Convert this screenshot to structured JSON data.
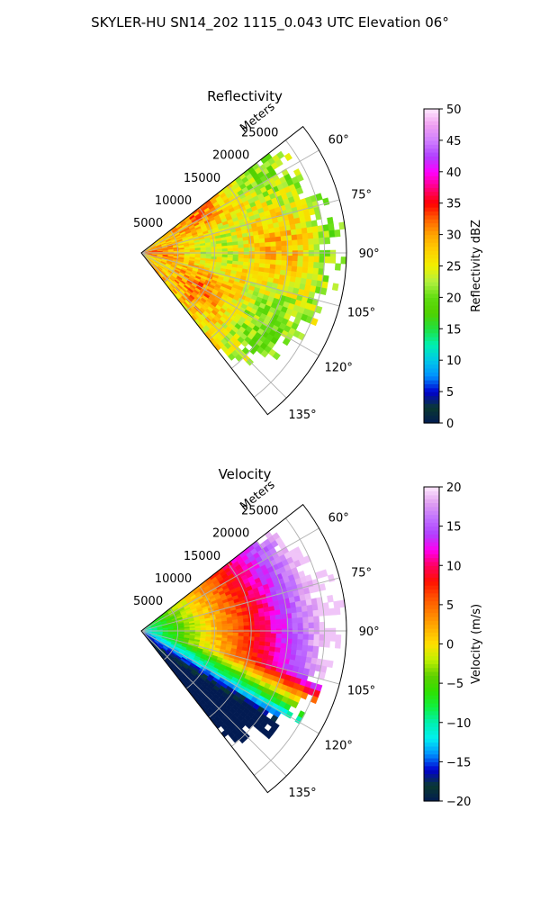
{
  "title": "SKYLER-HU  SN14_202  1115_0.043 UTC Elevation 06°",
  "chart_data": [
    {
      "type": "heatmap",
      "projection": "polar-sector",
      "title": "Reflectivity",
      "radial_label": "Meters",
      "radial_ticks": [
        5000,
        10000,
        15000,
        20000,
        25000
      ],
      "radial_tick_labels": [
        "5000",
        "10000",
        "15000",
        "20000",
        "25000"
      ],
      "azimuth_ticks": [
        60,
        75,
        90,
        105,
        120,
        135
      ],
      "azimuth_tick_labels": [
        "60°",
        "75°",
        "90°",
        "105°",
        "120°",
        "135°"
      ],
      "azimuth_range": [
        52,
        142
      ],
      "range_max": 28000,
      "grid": true,
      "colorbar": {
        "label": "Reflectivity dBZ",
        "range": [
          0,
          50
        ],
        "ticks": [
          0,
          5,
          10,
          15,
          20,
          25,
          30,
          35,
          40,
          45,
          50
        ],
        "tick_labels": [
          "0",
          "5",
          "10",
          "15",
          "20",
          "25",
          "30",
          "35",
          "40",
          "45",
          "50"
        ],
        "stops": [
          [
            0,
            "#021b52"
          ],
          [
            2.5,
            "#0a3a30"
          ],
          [
            5,
            "#0000d0"
          ],
          [
            7.5,
            "#0090ff"
          ],
          [
            10,
            "#00c8e8"
          ],
          [
            12.5,
            "#00f0b0"
          ],
          [
            15,
            "#20e040"
          ],
          [
            17.5,
            "#50d000"
          ],
          [
            20,
            "#60dd10"
          ],
          [
            22.5,
            "#b0f040"
          ],
          [
            25,
            "#f0f000"
          ],
          [
            27.5,
            "#ffd000"
          ],
          [
            30,
            "#ffa500"
          ],
          [
            32.5,
            "#ff6000"
          ],
          [
            35,
            "#ff0000"
          ],
          [
            37.5,
            "#ff0080"
          ],
          [
            40,
            "#ff00ff"
          ],
          [
            42.5,
            "#b040ff"
          ],
          [
            45,
            "#d080ff"
          ],
          [
            47.5,
            "#f0a0f0"
          ],
          [
            50,
            "#ffe8ff"
          ]
        ]
      },
      "field_summary": [
        {
          "region": "near-origin 0-5 km",
          "value_range": [
            25,
            36
          ]
        },
        {
          "region": "5-20 km",
          "value_range": [
            18,
            30
          ]
        },
        {
          "region": "20-28 km edges",
          "value_range": [
            15,
            24
          ]
        }
      ]
    },
    {
      "type": "heatmap",
      "projection": "polar-sector",
      "title": "Velocity",
      "radial_label": "Meters",
      "radial_ticks": [
        5000,
        10000,
        15000,
        20000,
        25000
      ],
      "radial_tick_labels": [
        "5000",
        "10000",
        "15000",
        "20000",
        "25000"
      ],
      "azimuth_ticks": [
        60,
        75,
        90,
        105,
        120,
        135
      ],
      "azimuth_tick_labels": [
        "60°",
        "75°",
        "90°",
        "105°",
        "120°",
        "135°"
      ],
      "azimuth_range": [
        52,
        142
      ],
      "range_max": 28000,
      "grid": true,
      "colorbar": {
        "label": "Velocity (m/s)",
        "range": [
          -20,
          20
        ],
        "ticks": [
          -20,
          -15,
          -10,
          -5,
          0,
          5,
          10,
          15,
          20
        ],
        "tick_labels": [
          "−20",
          "−15",
          "−10",
          "−5",
          "0",
          "5",
          "10",
          "15",
          "20"
        ],
        "stops": [
          [
            -20,
            "#021b52"
          ],
          [
            -18,
            "#0a3a30"
          ],
          [
            -16,
            "#0000d0"
          ],
          [
            -14,
            "#0090ff"
          ],
          [
            -12,
            "#00f0f0"
          ],
          [
            -10,
            "#00f0b0"
          ],
          [
            -8,
            "#10f040"
          ],
          [
            -6,
            "#30e000"
          ],
          [
            -4,
            "#60d000"
          ],
          [
            -2,
            "#c0f000"
          ],
          [
            0,
            "#ffe000"
          ],
          [
            2,
            "#ffb000"
          ],
          [
            4,
            "#ff8000"
          ],
          [
            6,
            "#ff5000"
          ],
          [
            8,
            "#ff1000"
          ],
          [
            10,
            "#ff0060"
          ],
          [
            12,
            "#ff00f0"
          ],
          [
            14,
            "#b040ff"
          ],
          [
            16,
            "#c070ff"
          ],
          [
            18,
            "#e0a0f0"
          ],
          [
            20,
            "#ffe8ff"
          ]
        ]
      },
      "field_summary": [
        {
          "region": "near-origin 0-3 km",
          "value_range": [
            -13,
            -10
          ]
        },
        {
          "region": "3-12 km",
          "value_range": [
            -8,
            -3
          ]
        },
        {
          "region": "12-17 km",
          "value_range": [
            -1,
            5
          ]
        },
        {
          "region": "17-21 km",
          "value_range": [
            8,
            11
          ]
        },
        {
          "region": "21-28 km",
          "value_range": [
            13,
            17
          ]
        }
      ]
    }
  ]
}
